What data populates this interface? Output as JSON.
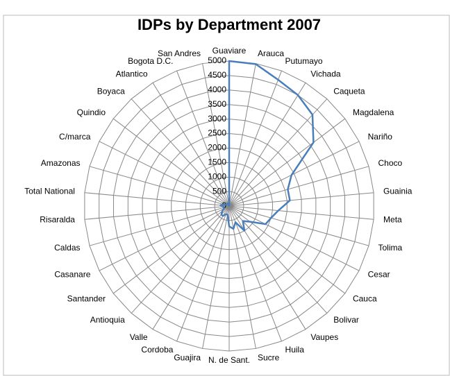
{
  "chart_data": {
    "type": "radar",
    "title": "IDPs by Department 2007",
    "categories": [
      "Guaviare",
      "Arauca",
      "Putumayo",
      "Vichada",
      "Caqueta",
      "Magdalena",
      "Nariño",
      "Choco",
      "Guainia",
      "Meta",
      "Tolima",
      "Cesar",
      "Cauca",
      "Bolivar",
      "Vaupes",
      "Huila",
      "Sucre",
      "N. de Sant.",
      "Guajira",
      "Cordoba",
      "Valle",
      "Antioquia",
      "Santander",
      "Casanare",
      "Caldas",
      "Risaralda",
      "Total National",
      "Amazonas",
      "C/marca",
      "Quindio",
      "Boyaca",
      "Atlantico",
      "Bogota D.C.",
      "San Andres"
    ],
    "series": [
      {
        "name": "IDPs",
        "color": "#4a7ebb",
        "values": [
          5000,
          4980,
          4670,
          4500,
          4260,
          3640,
          2400,
          2100,
          2100,
          1700,
          1500,
          1400,
          900,
          700,
          1000,
          600,
          800,
          700,
          300,
          300,
          400,
          400,
          300,
          200,
          200,
          200,
          300,
          200,
          100,
          100,
          100,
          100,
          100,
          0
        ]
      }
    ],
    "ylim": [
      0,
      5000
    ],
    "yticks": [
      0,
      500,
      1000,
      1500,
      2000,
      2500,
      3000,
      3500,
      4000,
      4500,
      5000
    ],
    "grid": true
  }
}
